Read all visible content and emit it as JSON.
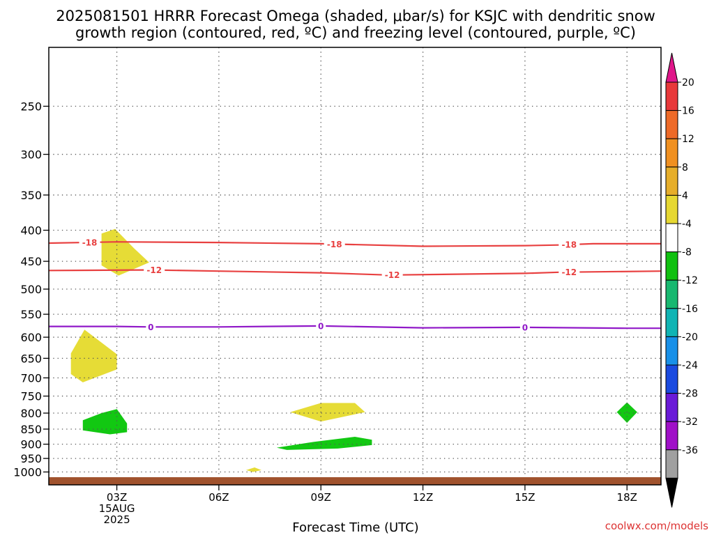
{
  "chart_data": {
    "type": "heatmap",
    "title_line1": "2025081501 HRRR Forecast Omega (shaded, μbar/s) for KSJC with dendritic snow",
    "title_line2": "growth region (contoured, red, ºC) and freezing level (contoured, purple, ºC)",
    "xlabel": "Forecast Time (UTC)",
    "ylabel": "",
    "credit": "coolwx.com/models",
    "x_range_hours": [
      1,
      19
    ],
    "x_ticks": [
      {
        "hour": 3,
        "lines": [
          "03Z",
          "15AUG",
          "2025"
        ]
      },
      {
        "hour": 6,
        "lines": [
          "06Z"
        ]
      },
      {
        "hour": 9,
        "lines": [
          "09Z"
        ]
      },
      {
        "hour": 12,
        "lines": [
          "12Z"
        ]
      },
      {
        "hour": 15,
        "lines": [
          "15Z"
        ]
      },
      {
        "hour": 18,
        "lines": [
          "18Z"
        ]
      }
    ],
    "y_axis": "pressure (hPa), log scale, inverted",
    "y_range_hpa": [
      1050,
      200
    ],
    "y_ticks": [
      250,
      300,
      350,
      400,
      450,
      500,
      550,
      600,
      650,
      700,
      750,
      800,
      850,
      900,
      950,
      1000
    ],
    "grid": true,
    "ground_color": "#a0522d",
    "ground_top_hpa": 1020,
    "colorbar": {
      "placement": "right",
      "labels": [
        "20",
        "16",
        "12",
        "8",
        "4",
        "-4",
        "-8",
        "-12",
        "-16",
        "-20",
        "-24",
        "-28",
        "-32",
        "-36"
      ],
      "top_arrow_color": "#e0168a",
      "bottom_arrow_color": "#000000",
      "band_colors_top_to_bottom": [
        "#e8383a",
        "#ee6a28",
        "#f09020",
        "#e6ae2a",
        "#e6d832",
        "#ffffff",
        "#10c010",
        "#18b870",
        "#10b4b4",
        "#1890e8",
        "#1a4ae0",
        "#6a1ad8",
        "#a010c8",
        "#a0a0a0"
      ]
    },
    "omega_regions": [
      {
        "color": "#e6dc36",
        "points": [
          [
            2.55,
            405
          ],
          [
            2.95,
            398
          ],
          [
            3.5,
            428
          ],
          [
            3.95,
            452
          ],
          [
            3.05,
            475
          ],
          [
            2.55,
            457
          ]
        ]
      },
      {
        "color": "#e6dc36",
        "points": [
          [
            1.65,
            638
          ],
          [
            2.05,
            583
          ],
          [
            3.0,
            640
          ],
          [
            3.0,
            678
          ],
          [
            2.0,
            712
          ],
          [
            1.65,
            690
          ]
        ]
      },
      {
        "color": "#e6dc36",
        "points": [
          [
            8.1,
            797
          ],
          [
            9.0,
            770
          ],
          [
            10.0,
            770
          ],
          [
            10.3,
            797
          ],
          [
            9.0,
            826
          ]
        ]
      },
      {
        "color": "#e6dc36",
        "points": [
          [
            6.8,
            993
          ],
          [
            7.05,
            983
          ],
          [
            7.25,
            993
          ],
          [
            7.0,
            1000
          ]
        ]
      },
      {
        "color": "#12c812",
        "points": [
          [
            2.0,
            822
          ],
          [
            2.55,
            800
          ],
          [
            3.0,
            788
          ],
          [
            3.3,
            832
          ],
          [
            3.3,
            860
          ],
          [
            2.8,
            867
          ],
          [
            2.0,
            854
          ]
        ]
      },
      {
        "color": "#12c812",
        "points": [
          [
            7.7,
            912
          ],
          [
            8.8,
            892
          ],
          [
            10.0,
            875
          ],
          [
            10.5,
            885
          ],
          [
            10.5,
            903
          ],
          [
            9.5,
            915
          ],
          [
            8.0,
            920
          ]
        ]
      },
      {
        "color": "#12c812",
        "points": [
          [
            17.7,
            797
          ],
          [
            18.0,
            768
          ],
          [
            18.3,
            797
          ],
          [
            18.0,
            830
          ]
        ]
      }
    ],
    "contours": [
      {
        "name": "-18",
        "color": "#e84040",
        "points": [
          [
            1,
            420
          ],
          [
            3,
            418
          ],
          [
            6,
            419
          ],
          [
            9,
            421
          ],
          [
            12,
            425
          ],
          [
            15,
            424
          ],
          [
            16,
            423
          ],
          [
            17,
            421
          ],
          [
            19,
            421
          ]
        ],
        "label_hours": [
          2.2,
          9.4,
          16.3
        ]
      },
      {
        "name": "-12",
        "color": "#e84040",
        "points": [
          [
            1,
            466
          ],
          [
            4,
            465
          ],
          [
            6,
            467
          ],
          [
            9,
            470
          ],
          [
            11,
            474
          ],
          [
            15,
            471
          ],
          [
            16,
            469
          ],
          [
            19,
            467
          ]
        ],
        "label_hours": [
          4.1,
          11.1,
          16.3
        ]
      },
      {
        "name": "0",
        "color": "#9018c8",
        "points": [
          [
            1,
            576
          ],
          [
            3,
            576
          ],
          [
            4,
            577
          ],
          [
            6,
            577
          ],
          [
            9,
            575
          ],
          [
            12,
            579
          ],
          [
            15,
            578
          ],
          [
            18,
            580
          ],
          [
            19,
            580
          ]
        ],
        "label_hours": [
          4.0,
          9.0,
          15.0
        ]
      }
    ]
  }
}
